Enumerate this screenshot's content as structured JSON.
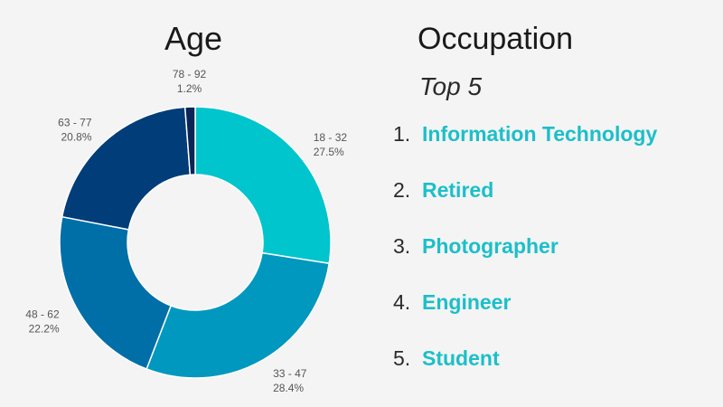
{
  "age_title": "Age",
  "occupation": {
    "title": "Occupation",
    "subtitle": "Top 5",
    "items": [
      {
        "num": "1.",
        "label": "Information Technology"
      },
      {
        "num": "2.",
        "label": "Retired"
      },
      {
        "num": "3.",
        "label": "Photographer"
      },
      {
        "num": "4.",
        "label": "Engineer"
      },
      {
        "num": "5.",
        "label": "Student"
      }
    ],
    "accent_color": "#1bbfc9"
  },
  "chart_data": {
    "type": "pie",
    "title": "Age",
    "donut": true,
    "categories": [
      "18 - 32",
      "33 - 47",
      "48 - 62",
      "63 - 77",
      "78 - 92"
    ],
    "values": [
      27.5,
      28.4,
      22.2,
      20.8,
      1.2
    ],
    "value_labels": [
      "27.5%",
      "28.4%",
      "22.2%",
      "20.8%",
      "1.2%"
    ],
    "colors": [
      "#00c5cc",
      "#0098be",
      "#006fa8",
      "#003d79",
      "#0a2556"
    ],
    "start_angle": "top, clockwise"
  }
}
